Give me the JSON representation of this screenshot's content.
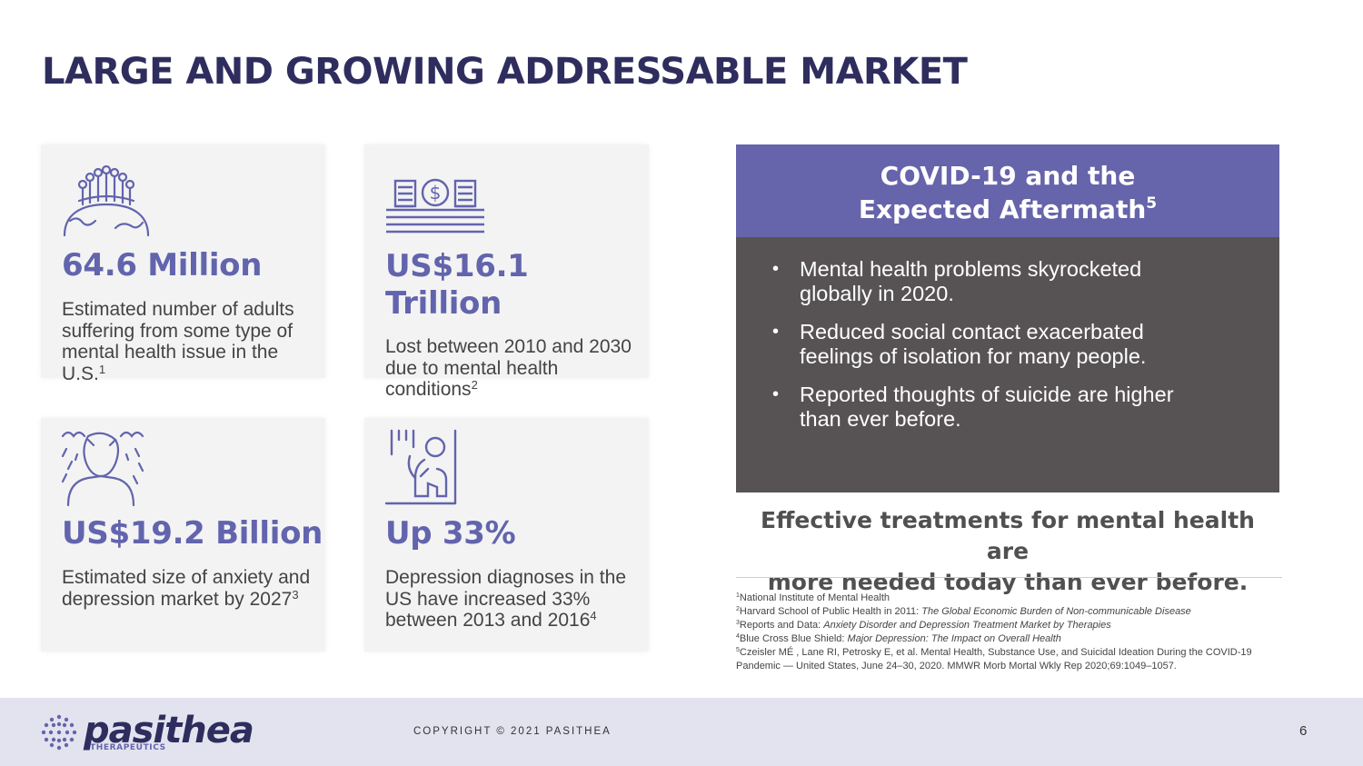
{
  "title": "LARGE AND GROWING ADDRESSABLE MARKET",
  "cards": [
    {
      "icon": "people-globe-icon",
      "stat": "64.6 Million",
      "desc": "Estimated number of adults suffering from some type of mental health issue in the U.S.",
      "sup": "1"
    },
    {
      "icon": "money-stack-icon",
      "stat_line1": "US$16.1",
      "stat_line2": "Trillion",
      "desc": "Lost between 2010 and 2030 due to mental health conditions",
      "sup": "2"
    },
    {
      "icon": "anxious-person-rain-icon",
      "stat": "US$19.2 Billion",
      "desc": "Estimated size of anxiety and depression market by 2027",
      "sup": "3"
    },
    {
      "icon": "depressed-person-icon",
      "stat": "Up 33%",
      "desc": "Depression diagnoses in the US have increased 33% between 2013 and 2016",
      "sup": "4"
    }
  ],
  "covid": {
    "title_line1": "COVID-19 and the",
    "title_line2": "Expected Aftermath",
    "title_sup": "5",
    "bullets": [
      "Mental health problems skyrocketed globally in 2020.",
      "Reduced social contact exacerbated feelings of isolation for many people.",
      "Reported thoughts of suicide are higher than ever before."
    ],
    "bullet_glyph": "•"
  },
  "effective": {
    "line1": "Effective treatments for mental health are",
    "line2": "more needed today than ever before."
  },
  "footnotes": [
    {
      "num": "1",
      "text": "National Institute of Mental Health",
      "italic": ""
    },
    {
      "num": "2",
      "text": "Harvard School of Public Health in 2011: ",
      "italic": "The Global Economic Burden of Non-communicable Disease"
    },
    {
      "num": "3",
      "text": "Reports and Data: ",
      "italic": "Anxiety Disorder and Depression Treatment Market by Therapies"
    },
    {
      "num": "4",
      "text": "Blue Cross Blue Shield: ",
      "italic": "Major Depression: The Impact on Overall Health"
    },
    {
      "num": "5",
      "text": "Czeisler MÉ , Lane RI, Petrosky E, et al. Mental Health, Substance Use, and Suicidal Ideation During the COVID-19 Pandemic — United States, June 24–30, 2020. MMWR Morb Mortal Wkly Rep 2020;69:1049–1057.",
      "italic": ""
    }
  ],
  "footer": {
    "logo_word": "pasithea",
    "logo_sub": "THERAPEUTICS",
    "copyright": "COPYRIGHT © 2021 PASITHEA",
    "page": "6"
  },
  "colors": {
    "accent": "#6664ab",
    "title": "#2e2d5e",
    "panel_dark": "#575354",
    "card_bg": "#f3f3f3",
    "footer_bg": "#e3e3ef"
  }
}
